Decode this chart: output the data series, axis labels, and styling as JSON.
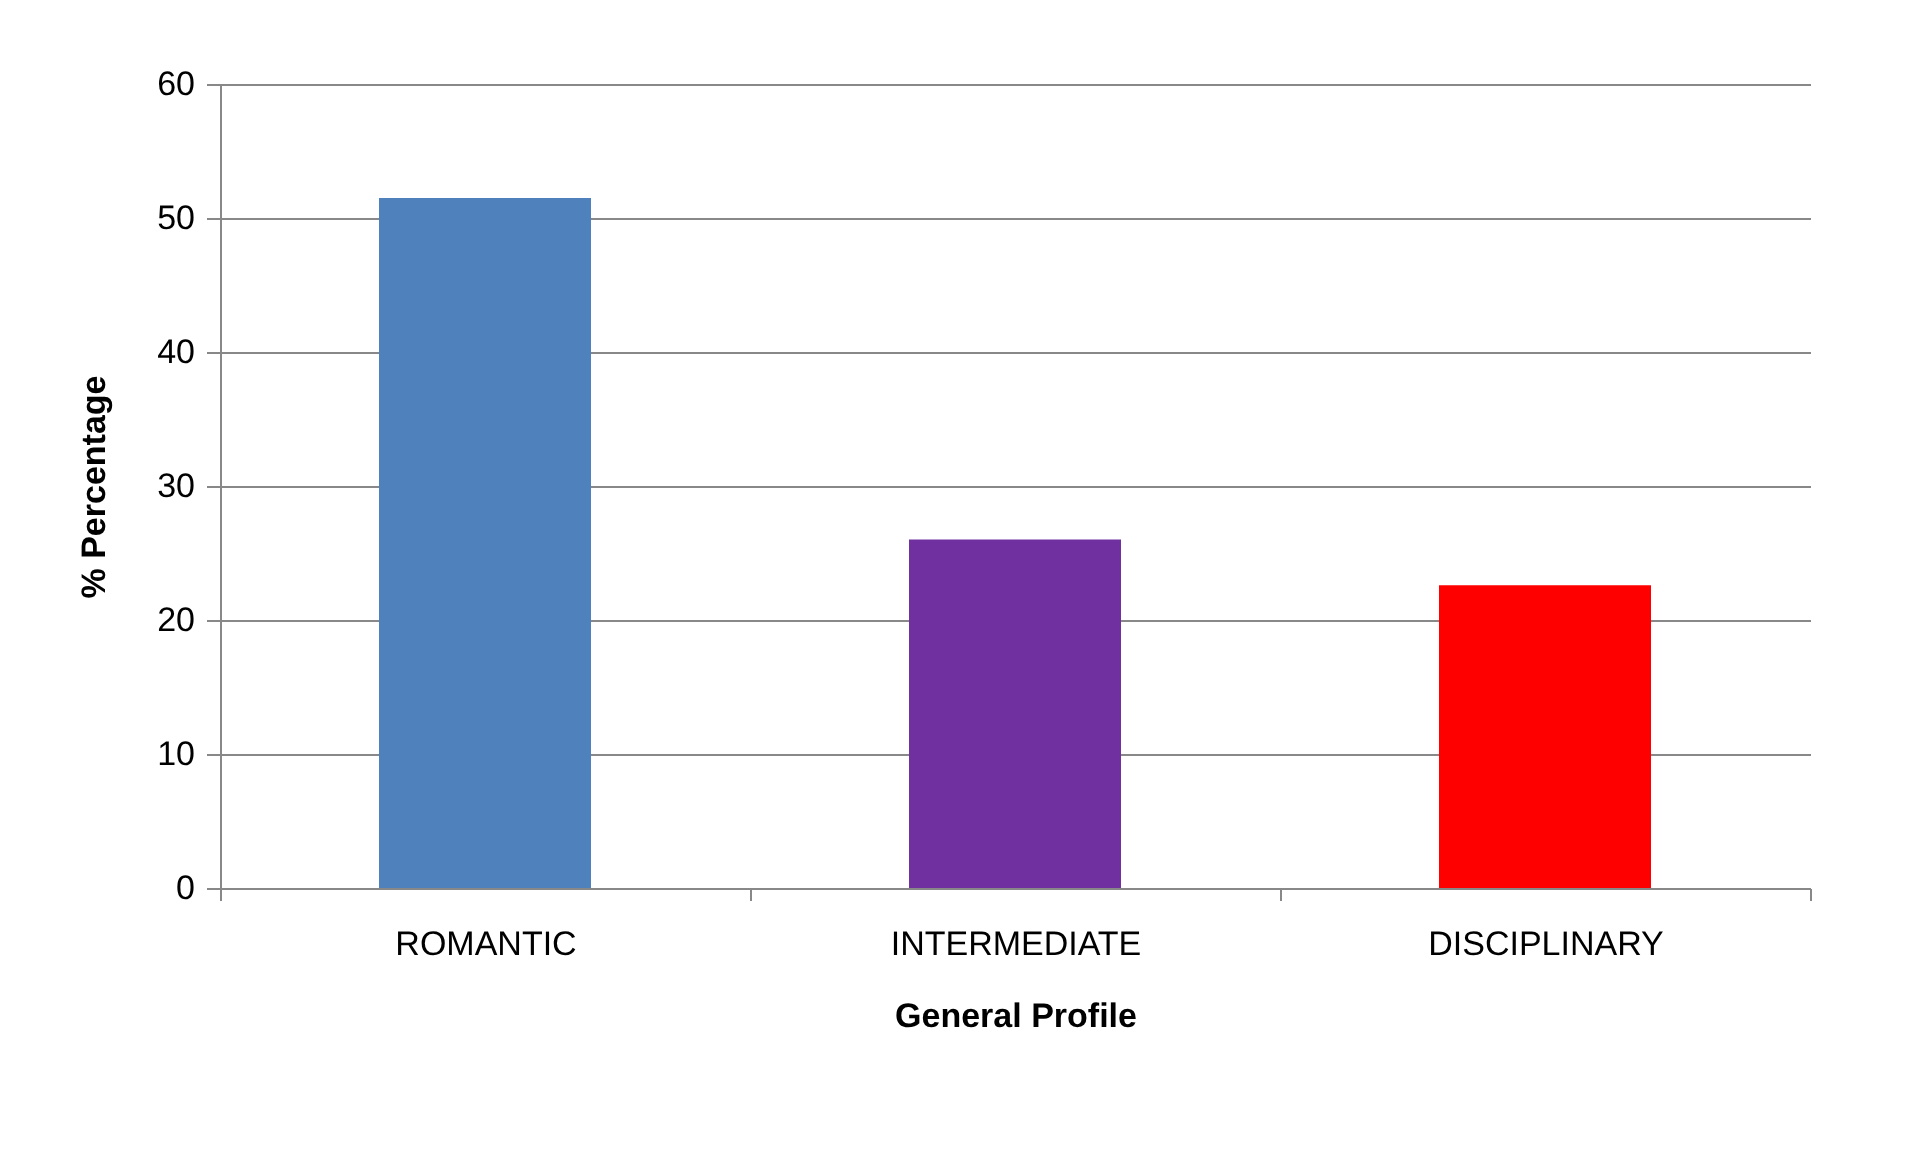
{
  "chart_data": {
    "type": "bar",
    "xlabel": "General Profile",
    "ylabel": "% Percentage",
    "categories": [
      "ROMANTIC",
      "INTERMEDIATE",
      "DISCIPLINARY"
    ],
    "values": [
      51.5,
      26,
      22.6
    ],
    "colors": [
      "#4f81bd",
      "#7030a0",
      "#ff0000"
    ],
    "ylim": [
      0,
      60
    ],
    "yticks": [
      0,
      10,
      20,
      30,
      40,
      50,
      60
    ],
    "grid": "y",
    "legend": false
  }
}
